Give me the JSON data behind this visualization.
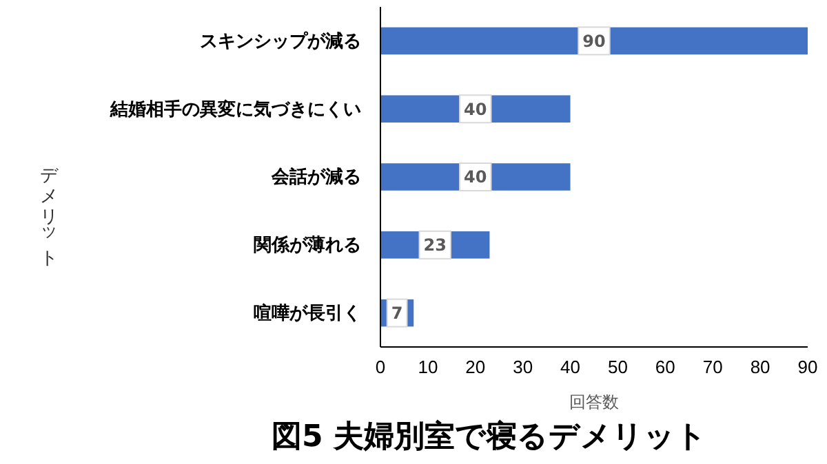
{
  "chart_data": {
    "type": "bar",
    "orientation": "horizontal",
    "title": "図5 夫婦別室で寝るデメリット",
    "xlabel": "回答数",
    "ylabel": "デメリット",
    "categories": [
      "スキンシップが減る",
      "結婚相手の異変に気づきにくい",
      "会話が減る",
      "関係が薄れる",
      "喧嘩が長引く"
    ],
    "values": [
      90,
      40,
      40,
      23,
      7
    ],
    "color": "#4472c4",
    "data_labels": true,
    "xlim": [
      0,
      90
    ],
    "xticks": [
      0,
      10,
      20,
      30,
      40,
      50,
      60,
      70,
      80,
      90
    ],
    "grid": false
  }
}
